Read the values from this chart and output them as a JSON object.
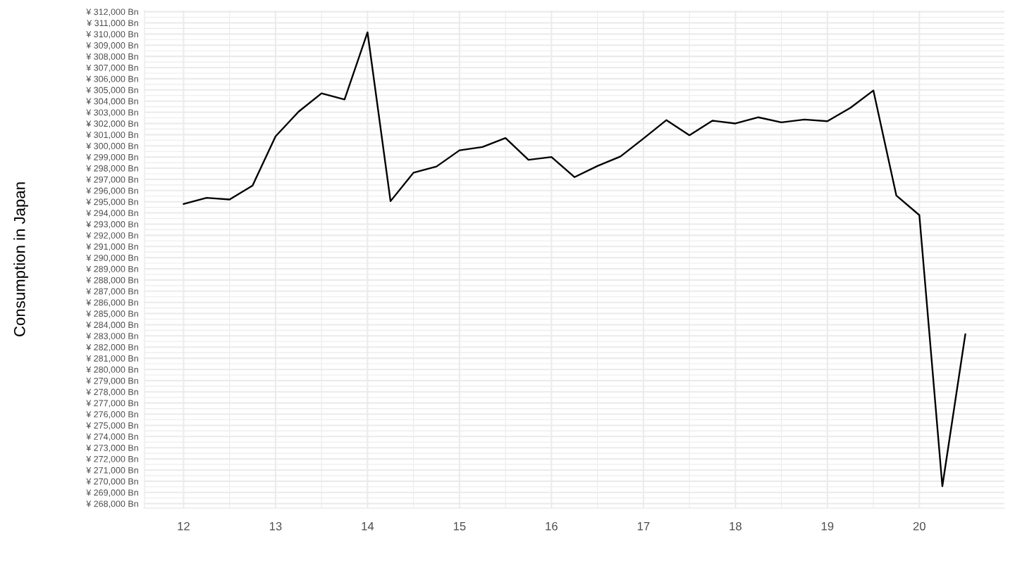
{
  "chart_data": {
    "type": "line",
    "ylabel": "Consumption in Japan",
    "x": [
      12,
      12.25,
      12.5,
      12.75,
      13,
      13.25,
      13.5,
      13.75,
      14,
      14.25,
      14.5,
      14.75,
      15,
      15.25,
      15.5,
      15.75,
      16,
      16.25,
      16.5,
      16.75,
      17,
      17.25,
      17.5,
      17.75,
      18,
      18.25,
      18.5,
      18.75,
      19,
      19.25,
      19.5,
      19.75,
      20,
      20.25,
      20.5
    ],
    "series": [
      {
        "color": "#000000",
        "values": [
          294800,
          295350,
          295200,
          296450,
          300850,
          303050,
          304700,
          304150,
          310150,
          295050,
          297600,
          298150,
          299600,
          299900,
          300700,
          298750,
          299000,
          297200,
          298200,
          299050,
          300650,
          302300,
          300950,
          302250,
          302000,
          302550,
          302100,
          302350,
          302200,
          303400,
          304950,
          295550,
          293800,
          269550,
          283150
        ]
      }
    ],
    "xlim": [
      11.575,
      20.925
    ],
    "ylim": [
      267600,
      312100
    ],
    "xticks": [
      12,
      13,
      14,
      15,
      16,
      17,
      18,
      19,
      20
    ],
    "yticks": [
      {
        "value": 268000,
        "label": "¥ 268,000 Bn"
      },
      {
        "value": 269000,
        "label": "¥ 269,000 Bn"
      },
      {
        "value": 270000,
        "label": "¥ 270,000 Bn"
      },
      {
        "value": 271000,
        "label": "¥ 271,000 Bn"
      },
      {
        "value": 272000,
        "label": "¥ 272,000 Bn"
      },
      {
        "value": 273000,
        "label": "¥ 273,000 Bn"
      },
      {
        "value": 274000,
        "label": "¥ 274,000 Bn"
      },
      {
        "value": 275000,
        "label": "¥ 275,000 Bn"
      },
      {
        "value": 276000,
        "label": "¥ 276,000 Bn"
      },
      {
        "value": 277000,
        "label": "¥ 277,000 Bn"
      },
      {
        "value": 278000,
        "label": "¥ 278,000 Bn"
      },
      {
        "value": 279000,
        "label": "¥ 279,000 Bn"
      },
      {
        "value": 280000,
        "label": "¥ 280,000 Bn"
      },
      {
        "value": 281000,
        "label": "¥ 281,000 Bn"
      },
      {
        "value": 282000,
        "label": "¥ 282,000 Bn"
      },
      {
        "value": 283000,
        "label": "¥ 283,000 Bn"
      },
      {
        "value": 284000,
        "label": "¥ 284,000 Bn"
      },
      {
        "value": 285000,
        "label": "¥ 285,000 Bn"
      },
      {
        "value": 286000,
        "label": "¥ 286,000 Bn"
      },
      {
        "value": 287000,
        "label": "¥ 287,000 Bn"
      },
      {
        "value": 288000,
        "label": "¥ 288,000 Bn"
      },
      {
        "value": 289000,
        "label": "¥ 289,000 Bn"
      },
      {
        "value": 290000,
        "label": "¥ 290,000 Bn"
      },
      {
        "value": 291000,
        "label": "¥ 291,000 Bn"
      },
      {
        "value": 292000,
        "label": "¥ 292,000 Bn"
      },
      {
        "value": 293000,
        "label": "¥ 293,000 Bn"
      },
      {
        "value": 294000,
        "label": "¥ 294,000 Bn"
      },
      {
        "value": 295000,
        "label": "¥ 295,000 Bn"
      },
      {
        "value": 296000,
        "label": "¥ 296,000 Bn"
      },
      {
        "value": 297000,
        "label": "¥ 297,000 Bn"
      },
      {
        "value": 298000,
        "label": "¥ 298,000 Bn"
      },
      {
        "value": 299000,
        "label": "¥ 299,000 Bn"
      },
      {
        "value": 300000,
        "label": "¥ 300,000 Bn"
      },
      {
        "value": 301000,
        "label": "¥ 301,000 Bn"
      },
      {
        "value": 302000,
        "label": "¥ 302,000 Bn"
      },
      {
        "value": 303000,
        "label": "¥ 303,000 Bn"
      },
      {
        "value": 304000,
        "label": "¥ 304,000 Bn"
      },
      {
        "value": 305000,
        "label": "¥ 305,000 Bn"
      },
      {
        "value": 306000,
        "label": "¥ 306,000 Bn"
      },
      {
        "value": 307000,
        "label": "¥ 307,000 Bn"
      },
      {
        "value": 308000,
        "label": "¥ 308,000 Bn"
      },
      {
        "value": 309000,
        "label": "¥ 309,000 Bn"
      },
      {
        "value": 310000,
        "label": "¥ 310,000 Bn"
      },
      {
        "value": 311000,
        "label": "¥ 311,000 Bn"
      },
      {
        "value": 312000,
        "label": "¥ 312,000 Bn"
      }
    ],
    "grid": true
  }
}
